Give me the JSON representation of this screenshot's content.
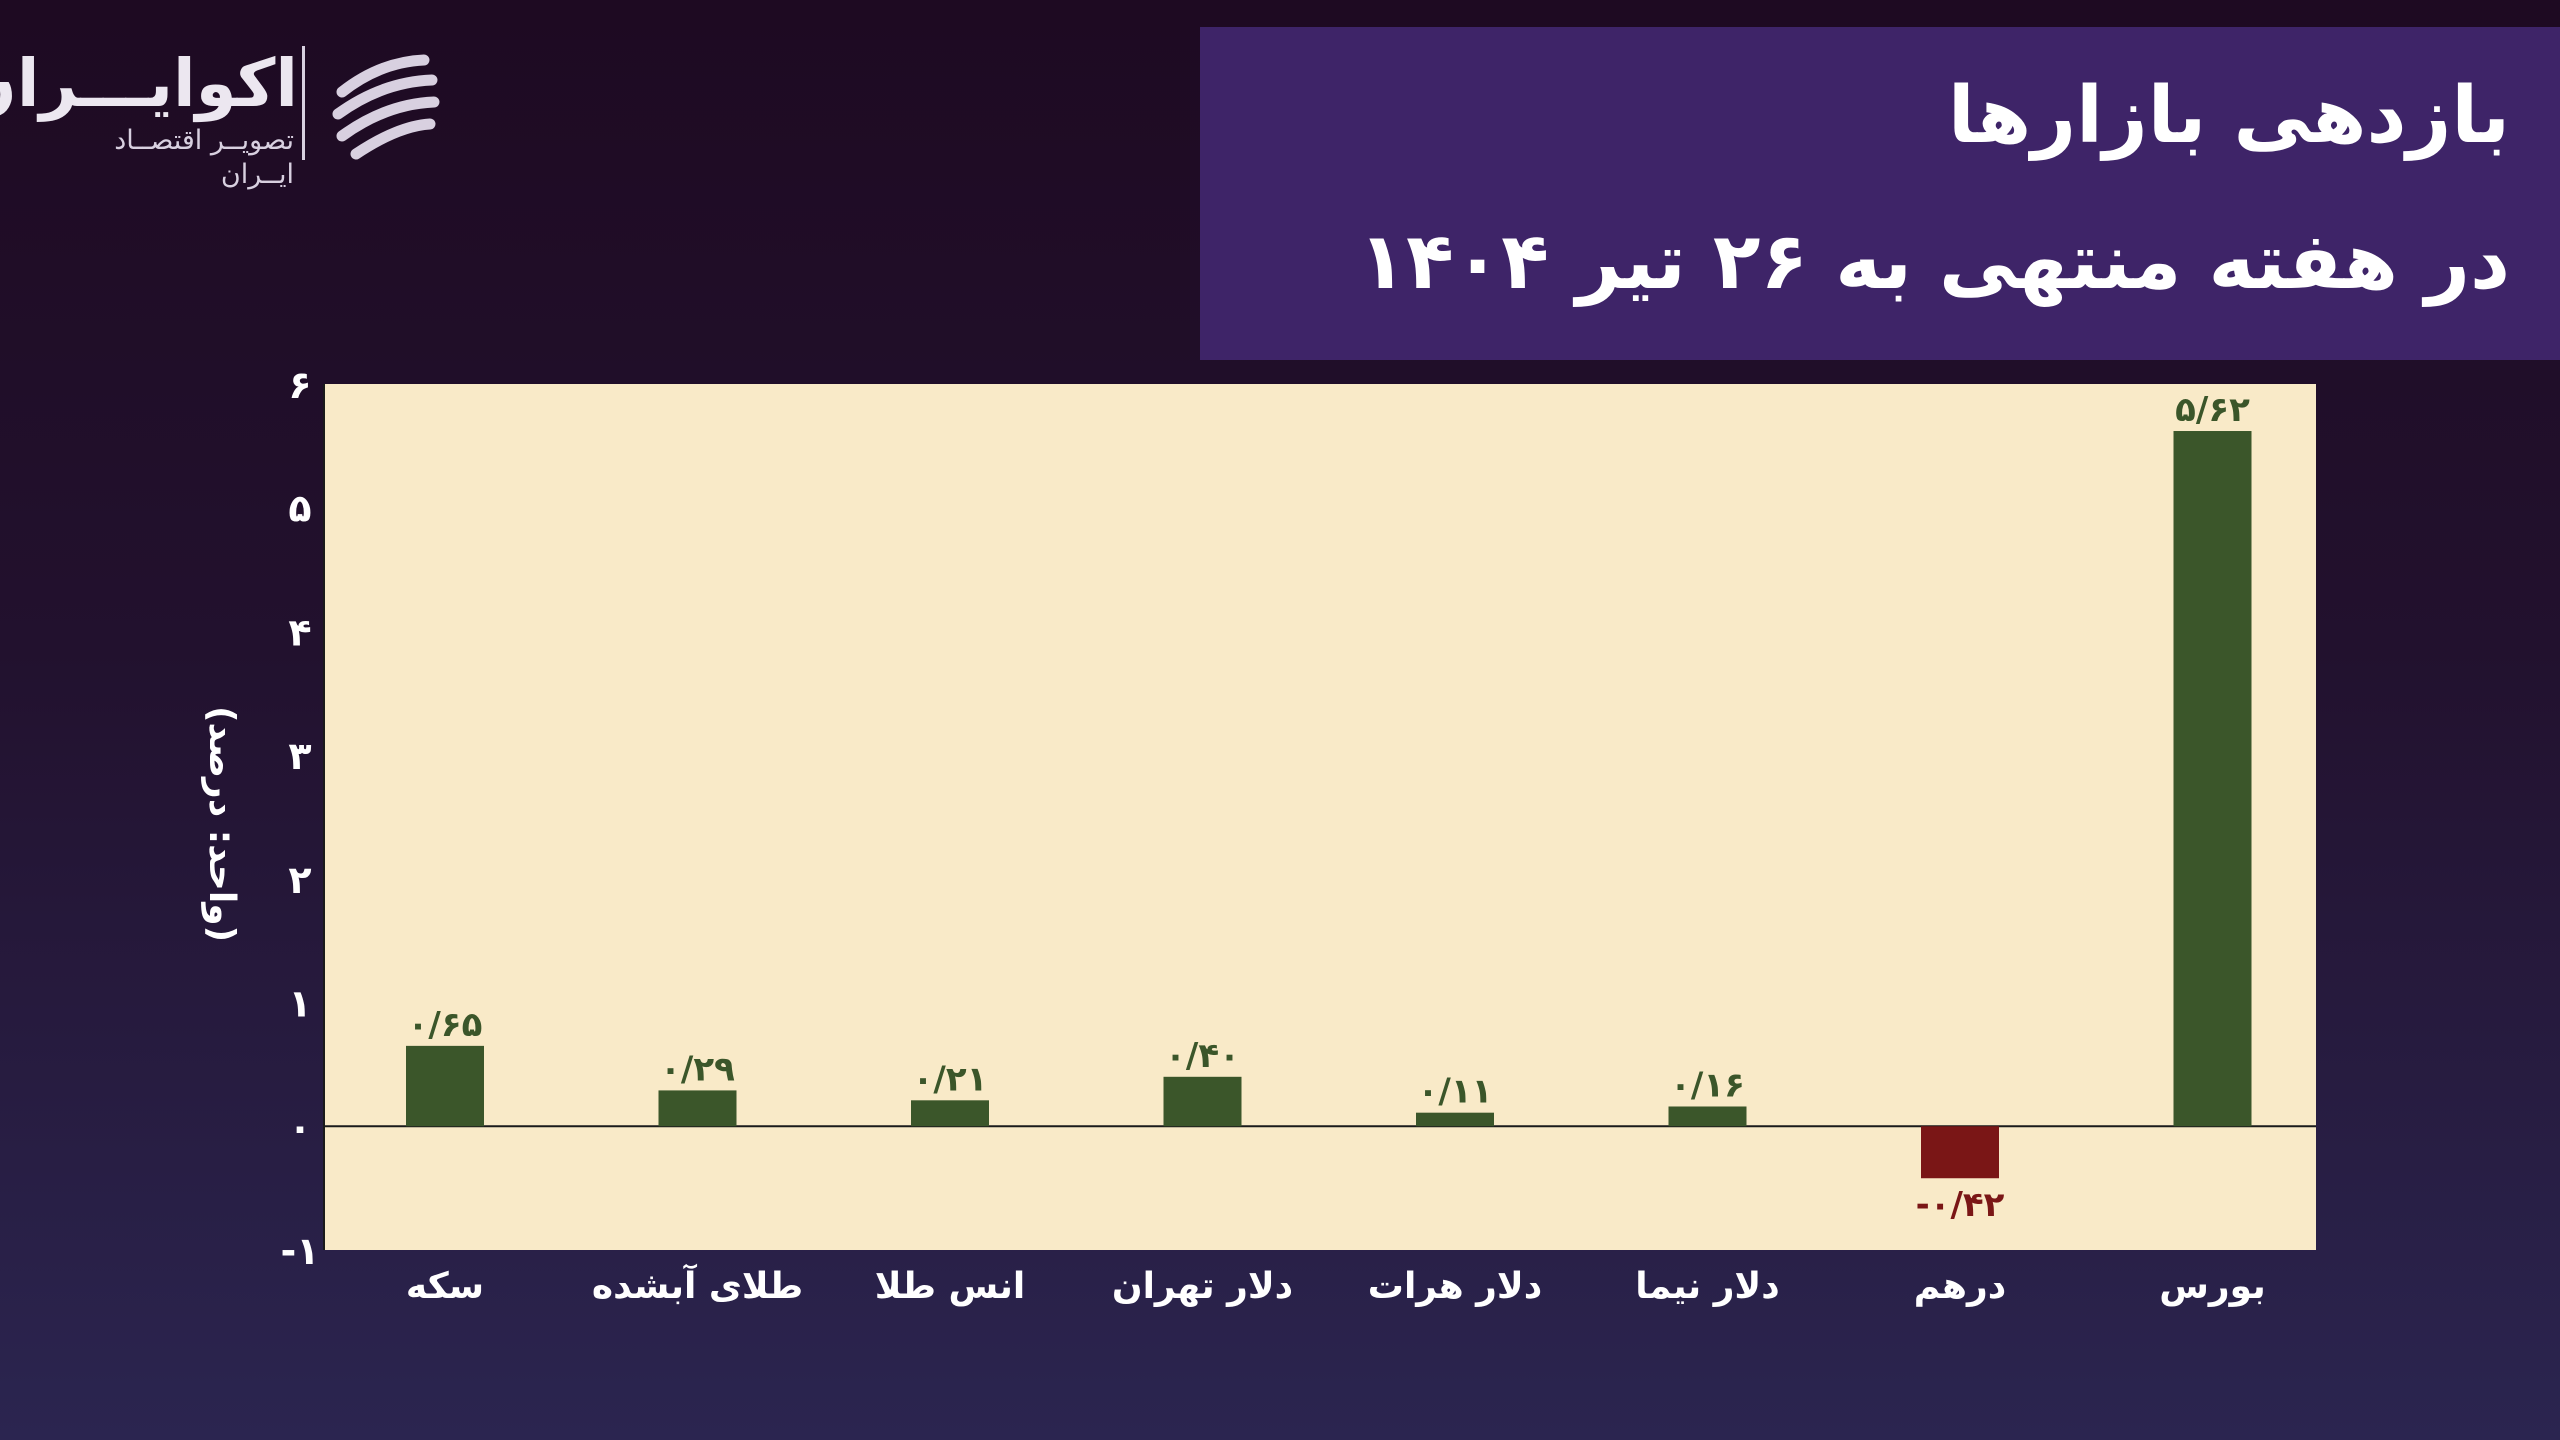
{
  "logo": {
    "name": "اکوایـــران",
    "tagline": "تصویــر اقتصــاد ایــران"
  },
  "title": {
    "line1": "بازدهی بازارها",
    "line2": "در هفته منتهی به ۲۶ تیر ۱۴۰۴"
  },
  "colors": {
    "positive": "#3b562a",
    "negative": "#7a1616",
    "plot_background": "#f9eac8",
    "title_box": "#3e2468"
  },
  "chart_data": {
    "type": "bar",
    "categories": [
      "سکه",
      "طلای آبشده",
      "انس طلا",
      "دلار تهران",
      "دلار هرات",
      "دلار نیما",
      "درهم",
      "بورس"
    ],
    "values": [
      0.65,
      0.29,
      0.21,
      0.4,
      0.11,
      0.16,
      -0.42,
      5.62
    ],
    "value_labels": [
      "۰/۶۵",
      "۰/۲۹",
      "۰/۲۱",
      "۰/۴۰",
      "۰/۱۱",
      "۰/۱۶",
      "-۰/۴۲",
      "۵/۶۲"
    ],
    "ylabel": "(واحد: درصد)",
    "ylim": [
      -1,
      6
    ],
    "yticks": [
      -1,
      0,
      1,
      2,
      3,
      4,
      5,
      6
    ],
    "ytick_labels": [
      "-۱",
      "۰",
      "۱",
      "۲",
      "۳",
      "۴",
      "۵",
      "۶"
    ],
    "grid": false,
    "legend": "none"
  }
}
